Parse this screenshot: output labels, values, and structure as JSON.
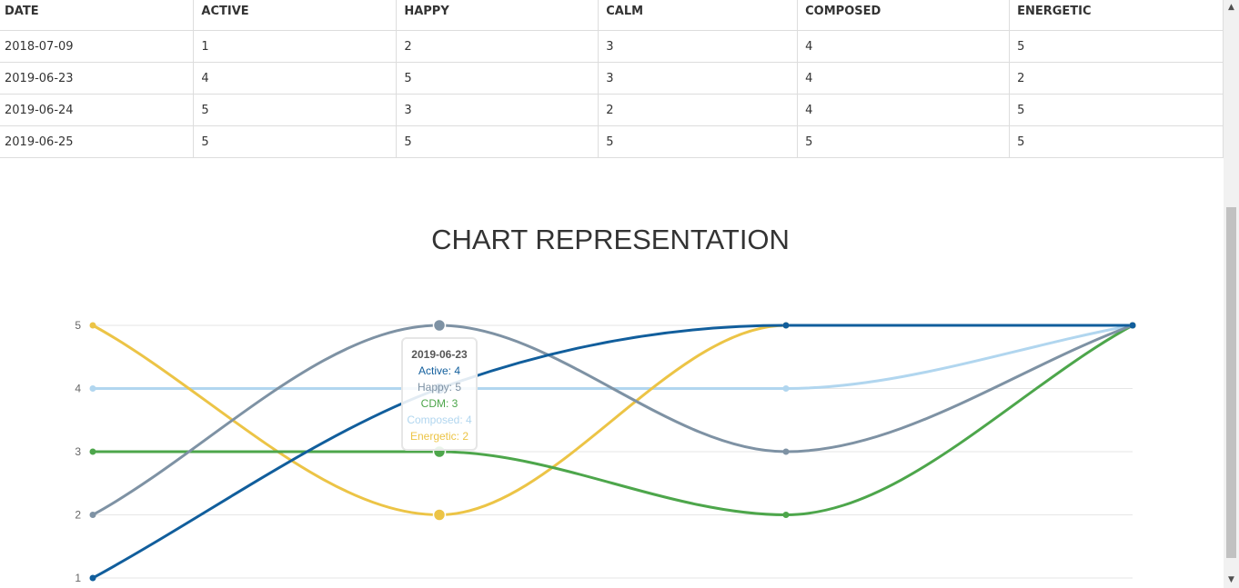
{
  "table": {
    "headers": [
      "DATE",
      "ACTIVE",
      "HAPPY",
      "CALM",
      "COMPOSED",
      "ENERGETIC"
    ],
    "rows": [
      [
        "2018-07-09",
        "1",
        "2",
        "3",
        "4",
        "5"
      ],
      [
        "2019-06-23",
        "4",
        "5",
        "3",
        "4",
        "2"
      ],
      [
        "2019-06-24",
        "5",
        "3",
        "2",
        "4",
        "5"
      ],
      [
        "2019-06-25",
        "5",
        "5",
        "5",
        "5",
        "5"
      ]
    ]
  },
  "chart_title": "CHART REPRESENTATION",
  "chart_data": {
    "type": "line",
    "x": [
      "2018-07-09",
      "2019-06-23",
      "2019-06-24",
      "2019-06-25"
    ],
    "ylim": [
      1,
      5
    ],
    "yticks": [
      "1",
      "2",
      "3",
      "4",
      "5"
    ],
    "grid": true,
    "series": [
      {
        "name": "Active",
        "values": [
          1,
          4,
          5,
          5
        ],
        "color": "#115e9c"
      },
      {
        "name": "Happy",
        "values": [
          2,
          5,
          3,
          5
        ],
        "color": "#7e92a4"
      },
      {
        "name": "Calm",
        "values": [
          3,
          3,
          2,
          5
        ],
        "color": "#4da64b"
      },
      {
        "name": "Composed",
        "values": [
          4,
          4,
          4,
          5
        ],
        "color": "#b1d6ef"
      },
      {
        "name": "Energetic",
        "values": [
          5,
          2,
          5,
          5
        ],
        "color": "#ecc446"
      }
    ],
    "highlight_index": 1
  },
  "tooltip": {
    "title": "2019-06-23",
    "lines": [
      {
        "text": "Active: 4",
        "color": "#115e9c"
      },
      {
        "text": "Happy: 5",
        "color": "#7e92a4"
      },
      {
        "text": "CDM: 3",
        "color": "#4da64b"
      },
      {
        "text": "Composed: 4",
        "color": "#b1d6ef"
      },
      {
        "text": "Energetic: 2",
        "color": "#ecc446"
      }
    ]
  },
  "scrollbar": {
    "up_icon": "scroll-up-arrow-icon",
    "down_icon": "scroll-down-arrow-icon"
  }
}
